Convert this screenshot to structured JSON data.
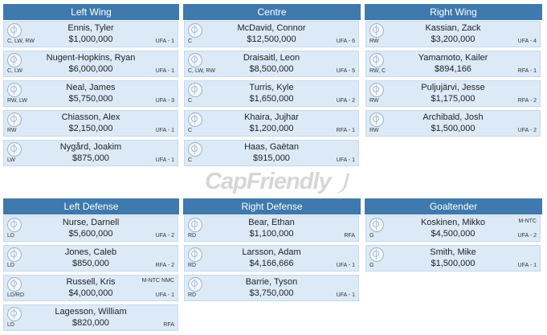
{
  "watermark": "CapFriendly",
  "forwards": {
    "headers": [
      "Left Wing",
      "Centre",
      "Right Wing"
    ],
    "left_wing": [
      {
        "name": "Ennis, Tyler",
        "cap": "$1,000,000",
        "pos": "C, LW, RW",
        "status": "UFA - 1",
        "clause": ""
      },
      {
        "name": "Nugent-Hopkins, Ryan",
        "cap": "$6,000,000",
        "pos": "C, LW",
        "status": "UFA - 1",
        "clause": ""
      },
      {
        "name": "Neal, James",
        "cap": "$5,750,000",
        "pos": "RW, LW",
        "status": "UFA - 3",
        "clause": ""
      },
      {
        "name": "Chiasson, Alex",
        "cap": "$2,150,000",
        "pos": "RW",
        "status": "UFA - 1",
        "clause": ""
      },
      {
        "name": "Nygård, Joakim",
        "cap": "$875,000",
        "pos": "LW",
        "status": "UFA - 1",
        "clause": ""
      }
    ],
    "centre": [
      {
        "name": "McDavid, Connor",
        "cap": "$12,500,000",
        "pos": "C",
        "status": "UFA - 6",
        "clause": ""
      },
      {
        "name": "Draisaitl, Leon",
        "cap": "$8,500,000",
        "pos": "C, LW, RW",
        "status": "UFA - 5",
        "clause": ""
      },
      {
        "name": "Turris, Kyle",
        "cap": "$1,650,000",
        "pos": "C",
        "status": "UFA - 2",
        "clause": ""
      },
      {
        "name": "Khaira, Jujhar",
        "cap": "$1,200,000",
        "pos": "C",
        "status": "RFA - 1",
        "clause": ""
      },
      {
        "name": "Haas, Gaëtan",
        "cap": "$915,000",
        "pos": "C",
        "status": "UFA - 1",
        "clause": ""
      }
    ],
    "right_wing": [
      {
        "name": "Kassian, Zack",
        "cap": "$3,200,000",
        "pos": "RW",
        "status": "UFA - 4",
        "clause": ""
      },
      {
        "name": "Yamamoto, Kailer",
        "cap": "$894,166",
        "pos": "RW, C",
        "status": "RFA - 1",
        "clause": ""
      },
      {
        "name": "Puljujärvi, Jesse",
        "cap": "$1,175,000",
        "pos": "RW",
        "status": "RFA - 2",
        "clause": ""
      },
      {
        "name": "Archibald, Josh",
        "cap": "$1,500,000",
        "pos": "RW",
        "status": "UFA - 2",
        "clause": ""
      }
    ]
  },
  "defense": {
    "headers": [
      "Left Defense",
      "Right Defense",
      "Goaltender"
    ],
    "left_defense": [
      {
        "name": "Nurse, Darnell",
        "cap": "$5,600,000",
        "pos": "LD",
        "status": "UFA - 2",
        "clause": ""
      },
      {
        "name": "Jones, Caleb",
        "cap": "$850,000",
        "pos": "LD",
        "status": "RFA - 2",
        "clause": ""
      },
      {
        "name": "Russell, Kris",
        "cap": "$4,000,000",
        "pos": "LD/RD",
        "status": "UFA - 1",
        "clause": "M-NTC NMC"
      },
      {
        "name": "Lagesson, William",
        "cap": "$820,000",
        "pos": "LD",
        "status": "RFA",
        "clause": ""
      }
    ],
    "right_defense": [
      {
        "name": "Bear, Ethan",
        "cap": "$1,100,000",
        "pos": "RD",
        "status": "RFA",
        "clause": ""
      },
      {
        "name": "Larsson, Adam",
        "cap": "$4,166,666",
        "pos": "RD",
        "status": "UFA - 1",
        "clause": ""
      },
      {
        "name": "Barrie, Tyson",
        "cap": "$3,750,000",
        "pos": "RD",
        "status": "UFA - 1",
        "clause": ""
      }
    ],
    "goaltender": [
      {
        "name": "Koskinen, Mikko",
        "cap": "$4,500,000",
        "pos": "G",
        "status": "UFA - 2",
        "clause": "M-NTC"
      },
      {
        "name": "Smith, Mike",
        "cap": "$1,500,000",
        "pos": "G",
        "status": "UFA - 1",
        "clause": ""
      }
    ]
  }
}
